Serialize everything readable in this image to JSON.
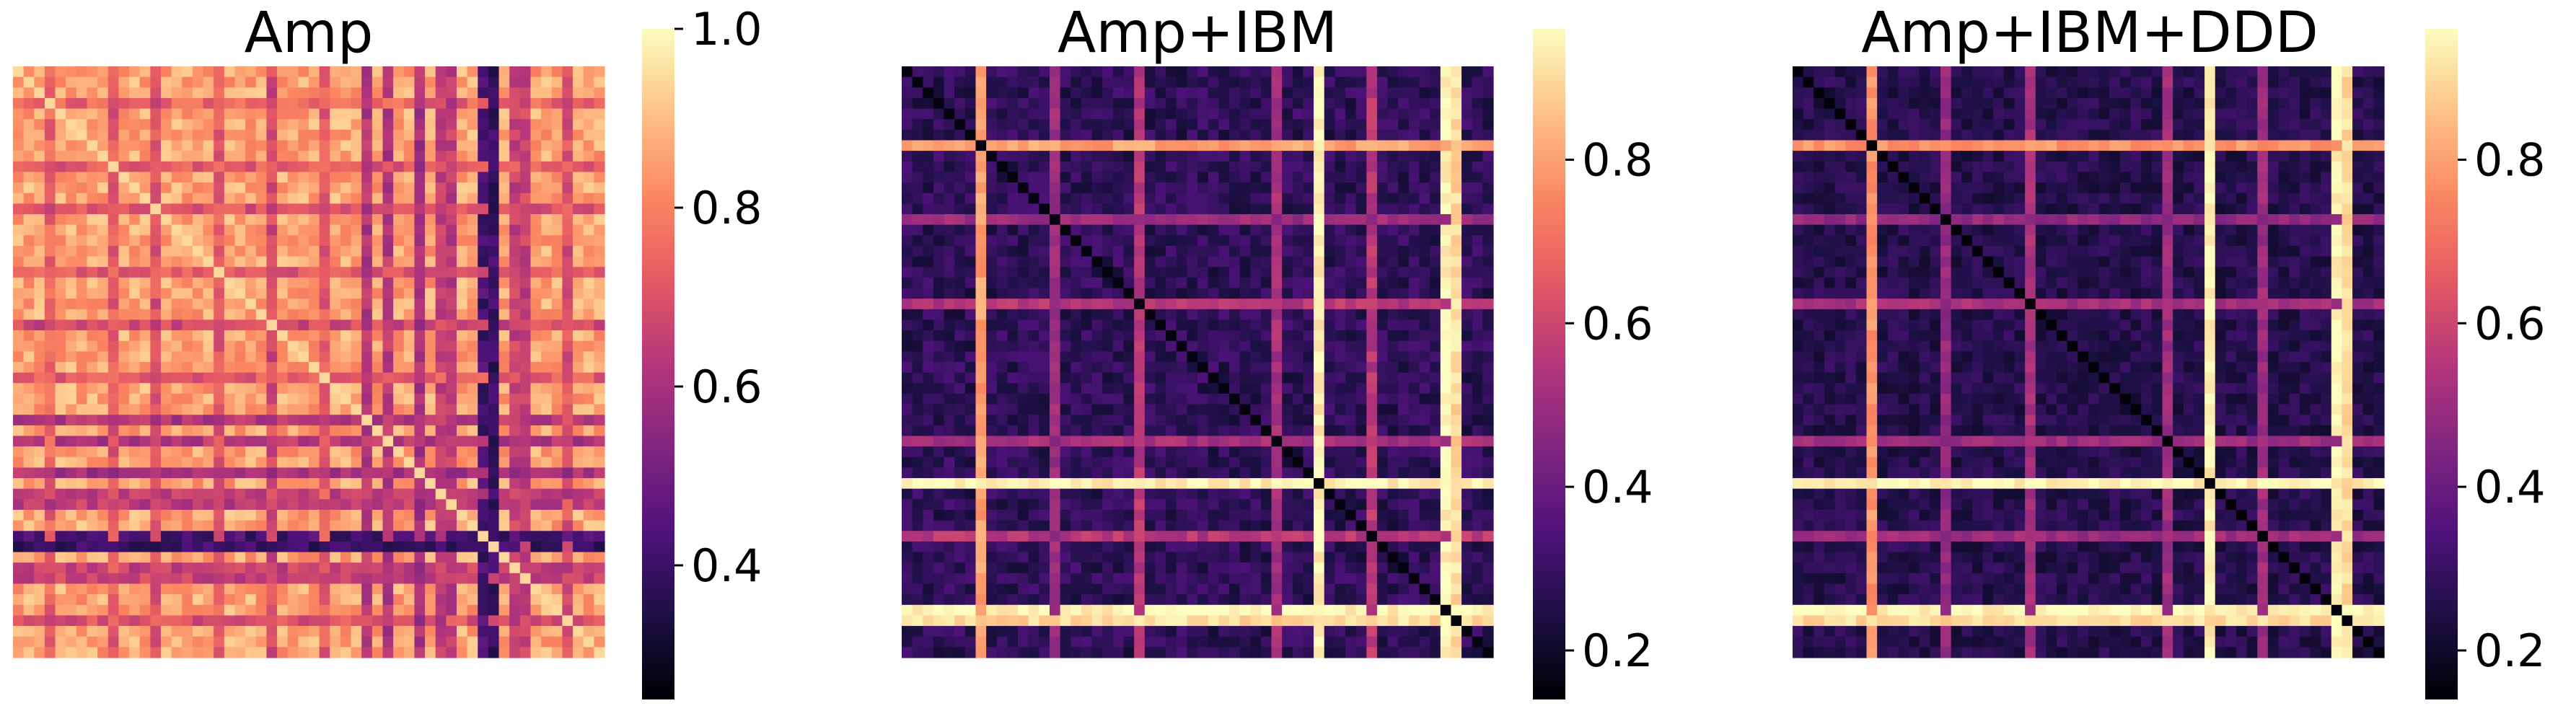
{
  "chart_data": [
    {
      "type": "heatmap",
      "title": "Amp",
      "colormap": "magma",
      "colorbar": {
        "vmin": 0.25,
        "vmax": 1.0,
        "ticks": [
          0.4,
          0.6,
          0.8,
          1.0
        ],
        "tick_labels": [
          "0.4",
          "0.6",
          "0.8",
          "1.0"
        ]
      },
      "grid": false,
      "n": 56,
      "base_value": 0.86,
      "diagonal_value": 0.94,
      "line_rows": [
        {
          "index": 3,
          "value": 0.74
        },
        {
          "index": 9,
          "value": 0.72
        },
        {
          "index": 13,
          "value": 0.7
        },
        {
          "index": 19,
          "value": 0.72
        },
        {
          "index": 24,
          "value": 0.68
        },
        {
          "index": 29,
          "value": 0.72
        },
        {
          "index": 35,
          "value": 0.62
        },
        {
          "index": 38,
          "value": 0.6
        },
        {
          "index": 40,
          "value": 0.64
        },
        {
          "index": 44,
          "value": 0.42
        },
        {
          "index": 47,
          "value": 0.66
        },
        {
          "index": 52,
          "value": 0.7
        }
      ],
      "line_cols": [
        {
          "index": 3,
          "value": 0.74
        },
        {
          "index": 9,
          "value": 0.72
        },
        {
          "index": 13,
          "value": 0.7
        },
        {
          "index": 19,
          "value": 0.72
        },
        {
          "index": 24,
          "value": 0.68
        },
        {
          "index": 33,
          "value": 0.62
        },
        {
          "index": 38,
          "value": 0.6
        },
        {
          "index": 41,
          "value": 0.64
        },
        {
          "index": 45,
          "value": 0.4
        },
        {
          "index": 48,
          "value": 0.66
        },
        {
          "index": 52,
          "value": 0.7
        }
      ],
      "noise": 0.07
    },
    {
      "type": "heatmap",
      "title": "Amp+IBM",
      "colormap": "magma",
      "colorbar": {
        "vmin": 0.14,
        "vmax": 0.96,
        "ticks": [
          0.2,
          0.4,
          0.6,
          0.8
        ],
        "tick_labels": [
          "0.2",
          "0.4",
          "0.6",
          "0.8"
        ]
      },
      "grid": false,
      "n": 56,
      "base_value": 0.28,
      "diagonal_value": 0.16,
      "line_rows": [
        {
          "index": 7,
          "value": 0.8
        },
        {
          "index": 14,
          "value": 0.5
        },
        {
          "index": 22,
          "value": 0.55
        },
        {
          "index": 35,
          "value": 0.52
        },
        {
          "index": 39,
          "value": 0.92
        },
        {
          "index": 44,
          "value": 0.55
        },
        {
          "index": 51,
          "value": 0.95
        }
      ],
      "line_cols": [
        {
          "index": 7,
          "value": 0.78
        },
        {
          "index": 39,
          "value": 0.94
        },
        {
          "index": 52,
          "value": 0.9
        }
      ],
      "noise": 0.06
    },
    {
      "type": "heatmap",
      "title": "Amp+IBM+DDD",
      "colormap": "magma",
      "colorbar": {
        "vmin": 0.14,
        "vmax": 0.96,
        "ticks": [
          0.2,
          0.4,
          0.6,
          0.8
        ],
        "tick_labels": [
          "0.2",
          "0.4",
          "0.6",
          "0.8"
        ]
      },
      "grid": false,
      "n": 56,
      "base_value": 0.26,
      "diagonal_value": 0.15,
      "line_rows": [
        {
          "index": 7,
          "value": 0.78
        },
        {
          "index": 14,
          "value": 0.48
        },
        {
          "index": 22,
          "value": 0.52
        },
        {
          "index": 35,
          "value": 0.5
        },
        {
          "index": 39,
          "value": 0.92
        },
        {
          "index": 44,
          "value": 0.5
        },
        {
          "index": 51,
          "value": 0.95
        }
      ],
      "line_cols": [
        {
          "index": 7,
          "value": 0.76
        },
        {
          "index": 39,
          "value": 0.94
        },
        {
          "index": 52,
          "value": 0.9
        }
      ],
      "noise": 0.05
    }
  ]
}
